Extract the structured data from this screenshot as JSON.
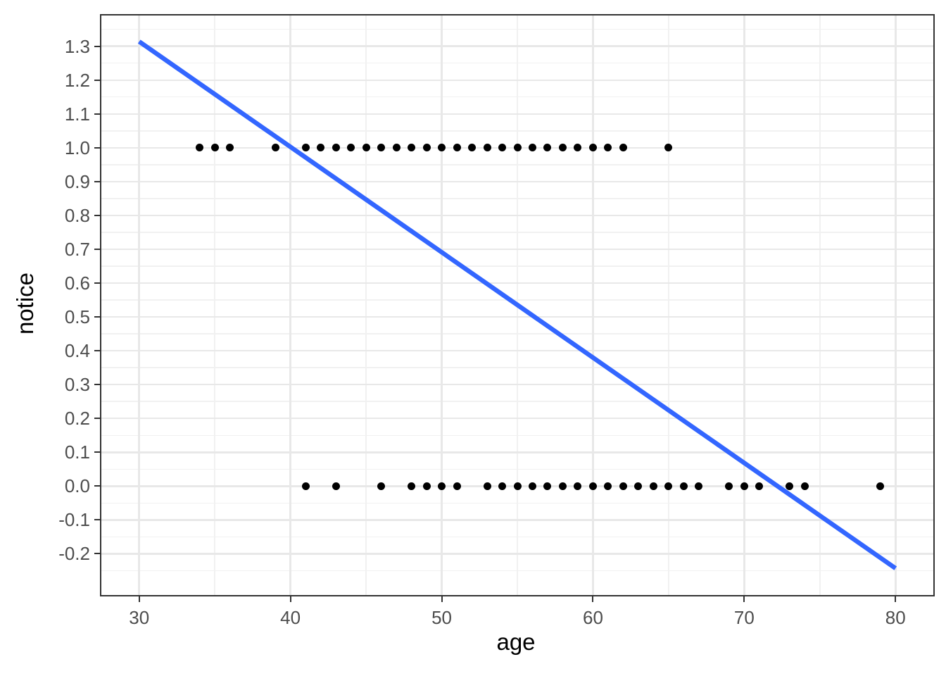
{
  "chart_data": {
    "type": "scatter",
    "title": "",
    "xlabel": "age",
    "ylabel": "notice",
    "x_domain": [
      27.5,
      82.5
    ],
    "y_domain": [
      -0.322,
      1.391
    ],
    "grid": true,
    "legend": "none",
    "x_ticks": {
      "values": [
        30,
        40,
        50,
        60,
        70,
        80
      ],
      "labels": [
        "30",
        "40",
        "50",
        "60",
        "70",
        "80"
      ],
      "minor": [
        35,
        45,
        55,
        65,
        75
      ]
    },
    "y_ticks": {
      "values": [
        1.3,
        1.2,
        1.1,
        1.0,
        0.9,
        0.8,
        0.7,
        0.6,
        0.5,
        0.4,
        0.3,
        0.2,
        0.1,
        0.0,
        -0.1,
        -0.2
      ],
      "labels": [
        "1.3",
        "1.2",
        "1.1",
        "1.0",
        "0.9",
        "0.8",
        "0.7",
        "0.6",
        "0.5",
        "0.4",
        "0.3",
        "0.2",
        "0.1",
        "0.0",
        "-0.1",
        "-0.2"
      ],
      "minor": [
        1.35,
        1.25,
        1.15,
        1.05,
        0.95,
        0.85,
        0.75,
        0.65,
        0.55,
        0.45,
        0.35,
        0.25,
        0.15,
        0.05,
        -0.05,
        -0.15,
        -0.25
      ]
    },
    "series": [
      {
        "y_value": 1,
        "x_values": [
          34,
          35,
          36,
          39,
          41,
          42,
          43,
          44,
          45,
          46,
          47,
          48,
          49,
          50,
          51,
          52,
          53,
          54,
          55,
          56,
          57,
          58,
          59,
          60,
          61,
          62,
          65
        ]
      },
      {
        "y_value": 0,
        "x_values": [
          41,
          43,
          46,
          48,
          49,
          50,
          51,
          53,
          54,
          55,
          56,
          57,
          58,
          59,
          60,
          61,
          62,
          63,
          64,
          65,
          66,
          67,
          69,
          70,
          71,
          73,
          74,
          79
        ]
      }
    ],
    "trend_line": {
      "x": [
        30,
        80
      ],
      "y": [
        1.314,
        -0.243
      ]
    },
    "colors": {
      "trend_line": "#3366FF",
      "points": "#000000",
      "grid_major": "#E8E8E8",
      "grid_minor": "#F1F1F1",
      "panel_border": "#333333",
      "tick_mark": "#333333",
      "tick_label": "#4D4D4D",
      "axis_title": "#000000",
      "panel_background": "#FFFFFF"
    }
  }
}
